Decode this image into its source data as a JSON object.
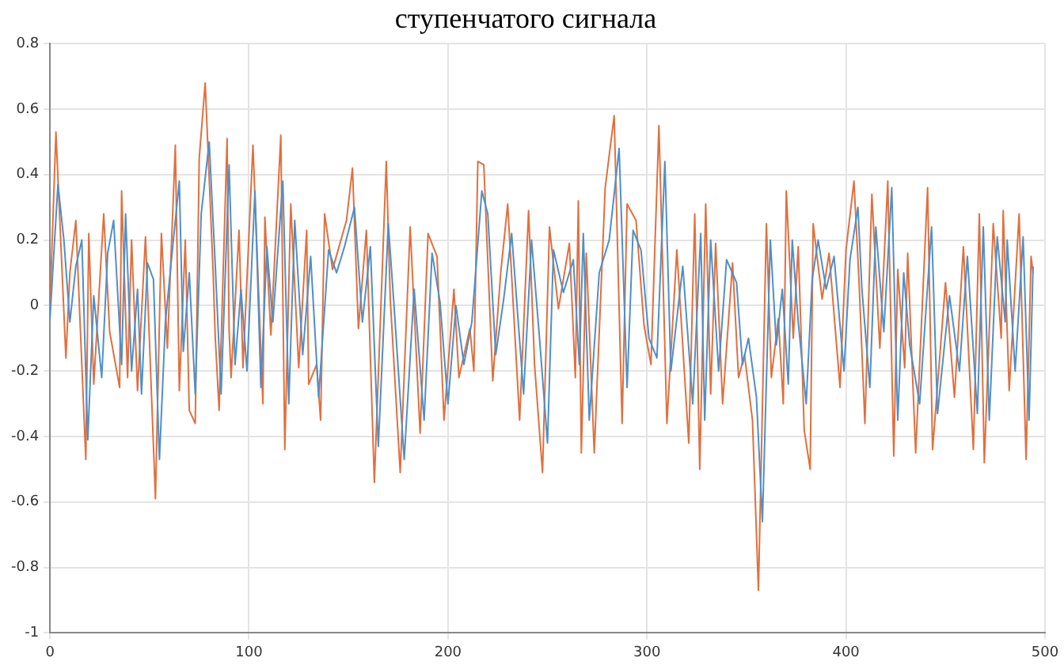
{
  "chart_data": {
    "type": "line",
    "title": "ступенчатого сигнала",
    "xlim": [
      0,
      500
    ],
    "xticks": [
      0,
      100,
      200,
      300,
      400,
      500
    ],
    "ylim": [
      -1,
      0.8
    ],
    "yticks": [
      -1,
      -0.8,
      -0.6,
      -0.4,
      -0.2,
      0,
      0.2,
      0.4,
      0.6,
      0.8
    ],
    "grid": true,
    "legend": false,
    "marker": "none",
    "line_style": "solid",
    "series": [
      {
        "color": "#4f8fc9",
        "x": [
          0,
          4,
          7,
          10,
          13,
          16,
          19,
          22,
          26,
          29,
          32,
          36,
          38,
          41,
          44,
          46,
          49,
          52,
          55,
          58,
          62,
          65,
          67,
          70,
          73,
          76,
          80,
          83,
          86,
          90,
          93,
          96,
          99,
          103,
          106,
          109,
          112,
          117,
          120,
          123,
          127,
          131,
          135,
          140,
          144,
          148,
          153,
          157,
          161,
          165,
          170,
          173,
          178,
          183,
          188,
          192,
          196,
          200,
          204,
          208,
          212,
          217,
          220,
          224,
          228,
          232,
          238,
          242,
          246,
          250,
          253,
          258,
          263,
          266,
          268,
          271,
          276,
          281,
          286,
          290,
          293,
          297,
          301,
          305,
          309,
          312,
          318,
          323,
          327,
          329,
          332,
          336,
          340,
          345,
          348,
          351,
          355,
          358,
          362,
          365,
          368,
          371,
          373,
          376,
          380,
          383,
          386,
          390,
          394,
          399,
          402,
          406,
          408,
          412,
          415,
          419,
          423,
          426,
          429,
          432,
          437,
          443,
          446,
          452,
          457,
          461,
          466,
          469,
          472,
          476,
          480,
          481,
          485,
          489,
          492,
          494
        ],
        "values": [
          -0.04,
          0.37,
          0.2,
          -0.05,
          0.12,
          0.2,
          -0.41,
          0.03,
          -0.22,
          0.16,
          0.26,
          -0.18,
          0.28,
          -0.2,
          0.05,
          -0.27,
          0.13,
          0.08,
          -0.47,
          -0.05,
          0.2,
          0.38,
          -0.14,
          0.1,
          -0.27,
          0.28,
          0.5,
          0.13,
          -0.27,
          0.43,
          -0.18,
          0.05,
          -0.2,
          0.35,
          -0.25,
          0.18,
          -0.05,
          0.38,
          -0.3,
          0.26,
          -0.15,
          0.15,
          -0.28,
          0.17,
          0.1,
          0.18,
          0.3,
          -0.05,
          0.18,
          -0.43,
          0.25,
          -0.01,
          -0.47,
          0.05,
          -0.35,
          0.16,
          0.01,
          -0.3,
          0,
          -0.18,
          -0.05,
          0.35,
          0.28,
          -0.15,
          0.02,
          0.22,
          -0.27,
          0.2,
          -0.1,
          -0.42,
          0.17,
          0.04,
          0.14,
          -0.18,
          0.22,
          -0.35,
          0.1,
          0.2,
          0.48,
          -0.25,
          0.23,
          0.17,
          -0.1,
          -0.16,
          0.44,
          -0.2,
          0.12,
          -0.3,
          0.22,
          -0.35,
          0.2,
          -0.2,
          0.14,
          0.07,
          -0.18,
          -0.1,
          -0.28,
          -0.66,
          0.2,
          -0.12,
          0.05,
          -0.24,
          0.2,
          -0.05,
          -0.3,
          0.08,
          0.2,
          0.05,
          0.15,
          -0.2,
          0.14,
          0.3,
          0.05,
          -0.25,
          0.24,
          -0.08,
          0.36,
          -0.35,
          0.1,
          -0.12,
          -0.3,
          0.24,
          -0.33,
          0.03,
          -0.2,
          0.15,
          -0.33,
          0.24,
          -0.35,
          0.21,
          -0.05,
          0.2,
          -0.2,
          0.21,
          -0.35,
          0.12
        ]
      },
      {
        "color": "#e0703e",
        "x": [
          0,
          3,
          8,
          10,
          13,
          18,
          19.5,
          22,
          27,
          30,
          35,
          36,
          39,
          41,
          44,
          48,
          53,
          56,
          59,
          63,
          65,
          68,
          70,
          73,
          75,
          78,
          82,
          83,
          85,
          89,
          90,
          91,
          95,
          97,
          102,
          107,
          108,
          111,
          116,
          118,
          121,
          125,
          129,
          130,
          134,
          136,
          138,
          142,
          149,
          152,
          155,
          159,
          163,
          169,
          171,
          176,
          181,
          186,
          190,
          194.5,
          198,
          203,
          205.5,
          211,
          213,
          215,
          218,
          222.5,
          226.5,
          230,
          236,
          240.5,
          243.5,
          247.5,
          251,
          255.5,
          261,
          264,
          265.5,
          267,
          269.5,
          273.5,
          279,
          283.5,
          287.5,
          290,
          294.5,
          298.5,
          302,
          306,
          310,
          315,
          321,
          324,
          326.5,
          329.5,
          332,
          334.5,
          338,
          343,
          346,
          349,
          353,
          356,
          360,
          362.5,
          366,
          368.5,
          370,
          373.5,
          376,
          379,
          382,
          383.5,
          388,
          391.5,
          397,
          400,
          404,
          406.5,
          409.5,
          413,
          417,
          421,
          424,
          426,
          429.5,
          431,
          435,
          441,
          443.5,
          450,
          454.5,
          459,
          464,
          467,
          469.5,
          474,
          478,
          479,
          482,
          487,
          490.5,
          493,
          494
        ],
        "values": [
          0,
          0.53,
          -0.16,
          0.1,
          0.26,
          -0.47,
          0.22,
          -0.24,
          0.28,
          -0.08,
          -0.25,
          0.35,
          -0.22,
          0.2,
          -0.26,
          0.21,
          -0.59,
          0.22,
          -0.13,
          0.49,
          -0.26,
          0.2,
          -0.32,
          -0.36,
          0.45,
          0.68,
          0.1,
          -0.09,
          -0.32,
          0.51,
          -0.07,
          -0.22,
          0.23,
          -0.19,
          0.49,
          -0.3,
          0.27,
          -0.09,
          0.52,
          -0.44,
          0.31,
          -0.19,
          0.23,
          -0.24,
          -0.18,
          -0.35,
          0.28,
          0.11,
          0.26,
          0.42,
          -0.07,
          0.23,
          -0.54,
          0.44,
          0.02,
          -0.51,
          0.24,
          -0.39,
          0.22,
          0.15,
          -0.35,
          0.05,
          -0.22,
          -0.07,
          -0.2,
          0.44,
          0.43,
          -0.23,
          0.1,
          0.31,
          -0.35,
          0.29,
          -0.18,
          -0.51,
          0.24,
          -0.01,
          0.19,
          -0.22,
          0.32,
          -0.45,
          0.16,
          -0.45,
          0.36,
          0.58,
          -0.36,
          0.31,
          0.26,
          -0.06,
          -0.18,
          0.55,
          -0.36,
          0.17,
          -0.42,
          0.28,
          -0.5,
          0.31,
          -0.27,
          0.19,
          -0.3,
          0.13,
          -0.22,
          -0.15,
          -0.35,
          -0.87,
          0.25,
          -0.22,
          -0.04,
          -0.3,
          0.35,
          -0.1,
          0.18,
          -0.38,
          -0.5,
          0.25,
          0.02,
          0.16,
          -0.25,
          0.17,
          0.38,
          0.08,
          -0.36,
          0.34,
          -0.13,
          0.38,
          -0.46,
          0.11,
          -0.19,
          0.16,
          -0.45,
          0.36,
          -0.44,
          0.07,
          -0.28,
          0.18,
          -0.44,
          0.28,
          -0.48,
          0.25,
          -0.1,
          0.29,
          -0.26,
          0.28,
          -0.47,
          0.15,
          0.1
        ]
      }
    ]
  }
}
